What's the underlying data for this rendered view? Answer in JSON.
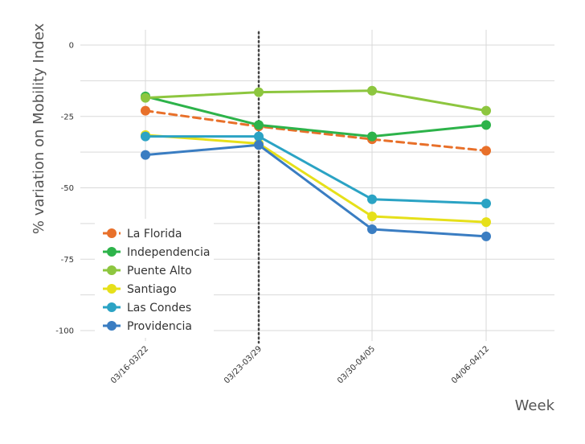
{
  "chart_data": {
    "type": "line",
    "xlabel": "Week",
    "ylabel": "% variation on Mobility Index",
    "categories": [
      "03/16-03/22",
      "03/23-03/29",
      "03/30-04/05",
      "04/06-04/12"
    ],
    "ylim": [
      -100,
      10
    ],
    "yticks": [
      0,
      -25,
      -50,
      -75,
      -100
    ],
    "grid": true,
    "reference_line": {
      "category": "03/23-03/29",
      "style": "dotted",
      "color": "#444444"
    },
    "legend": {
      "placement": "bottom-left"
    },
    "series": [
      {
        "name": "La Florida",
        "color": "#E8702A",
        "dashed": true,
        "values": [
          -23,
          -28.5,
          -33,
          -37
        ]
      },
      {
        "name": "Independencia",
        "color": "#2DB34A",
        "dashed": false,
        "values": [
          -18,
          -28,
          -32,
          -28
        ]
      },
      {
        "name": "Puente Alto",
        "color": "#8DC63F",
        "dashed": false,
        "values": [
          -18.5,
          -16.5,
          -16,
          -23
        ]
      },
      {
        "name": "Santiago",
        "color": "#E6E01A",
        "dashed": false,
        "values": [
          -31.5,
          -34.5,
          -60,
          -62
        ]
      },
      {
        "name": "Las Condes",
        "color": "#2BA3C4",
        "dashed": false,
        "values": [
          -32,
          -32,
          -54,
          -55.5
        ]
      },
      {
        "name": "Providencia",
        "color": "#3A7DC2",
        "dashed": false,
        "values": [
          -38.5,
          -35,
          -64.5,
          -67
        ]
      }
    ]
  }
}
